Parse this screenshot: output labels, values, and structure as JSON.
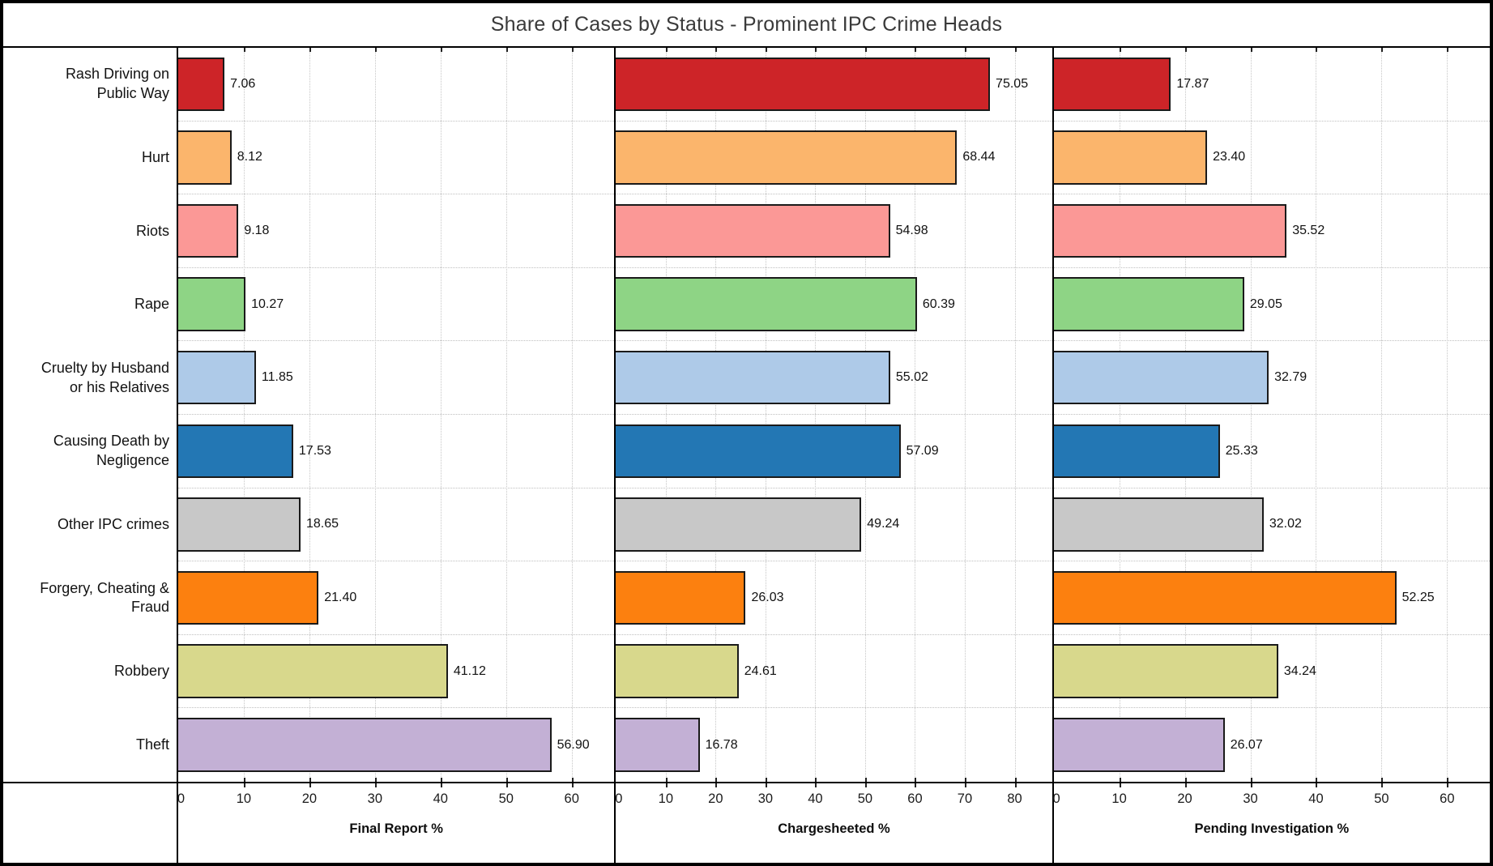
{
  "title": "Share of Cases by Status - Prominent IPC Crime Heads",
  "colors": {
    "frame": "#000000",
    "background": "#ffffff",
    "title_text": "#3a3a3a",
    "label_text": "#121212",
    "gridline": "#c6c6c6",
    "bar_edge": "#1a1a1a"
  },
  "chart_data": {
    "type": "bar",
    "orientation": "horizontal",
    "grid": "dotted, vertical at every 10 units and horizontal between category rows",
    "legend": "none",
    "value_labels": "two decimals, right of each bar",
    "categories": [
      "Rash Driving on\nPublic Way",
      "Hurt",
      "Riots",
      "Rape",
      "Cruelty by Husband\nor his Relatives",
      "Causing Death by\nNegligence",
      "Other IPC crimes",
      "Forgery, Cheating &\nFraud",
      "Robbery",
      "Theft"
    ],
    "bar_colors": [
      "#cd2428",
      "#fbb56c",
      "#fb9896",
      "#8ed485",
      "#aecae8",
      "#2377b4",
      "#c8c8c8",
      "#fc800f",
      "#d8d88c",
      "#c3b0d5"
    ],
    "panels": [
      {
        "axis_label": "Final Report %",
        "values": [
          7.06,
          8.12,
          9.18,
          10.27,
          11.85,
          17.53,
          18.65,
          21.4,
          41.12,
          56.9
        ],
        "labels": [
          "7.06",
          "8.12",
          "9.18",
          "10.27",
          "11.85",
          "17.53",
          "18.65",
          "21.40",
          "41.12",
          "56.90"
        ],
        "ticks": [
          0,
          10,
          20,
          30,
          40,
          50,
          60
        ],
        "xlim": [
          0,
          66.5
        ]
      },
      {
        "axis_label": "Chargesheeted %",
        "values": [
          75.05,
          68.44,
          54.98,
          60.39,
          55.02,
          57.09,
          49.24,
          26.03,
          24.61,
          16.78
        ],
        "labels": [
          "75.05",
          "68.44",
          "54.98",
          "60.39",
          "55.02",
          "57.09",
          "49.24",
          "26.03",
          "24.61",
          "16.78"
        ],
        "ticks": [
          0,
          10,
          20,
          30,
          40,
          50,
          60,
          70,
          80
        ],
        "xlim": [
          0,
          87.5
        ]
      },
      {
        "axis_label": "Pending Investigation %",
        "values": [
          17.87,
          23.4,
          35.52,
          29.05,
          32.79,
          25.33,
          32.02,
          52.25,
          34.24,
          26.07
        ],
        "labels": [
          "17.87",
          "23.40",
          "35.52",
          "29.05",
          "32.79",
          "25.33",
          "32.02",
          "52.25",
          "34.24",
          "26.07"
        ],
        "ticks": [
          0,
          10,
          20,
          30,
          40,
          50,
          60
        ],
        "xlim": [
          0,
          66.5
        ]
      }
    ]
  }
}
